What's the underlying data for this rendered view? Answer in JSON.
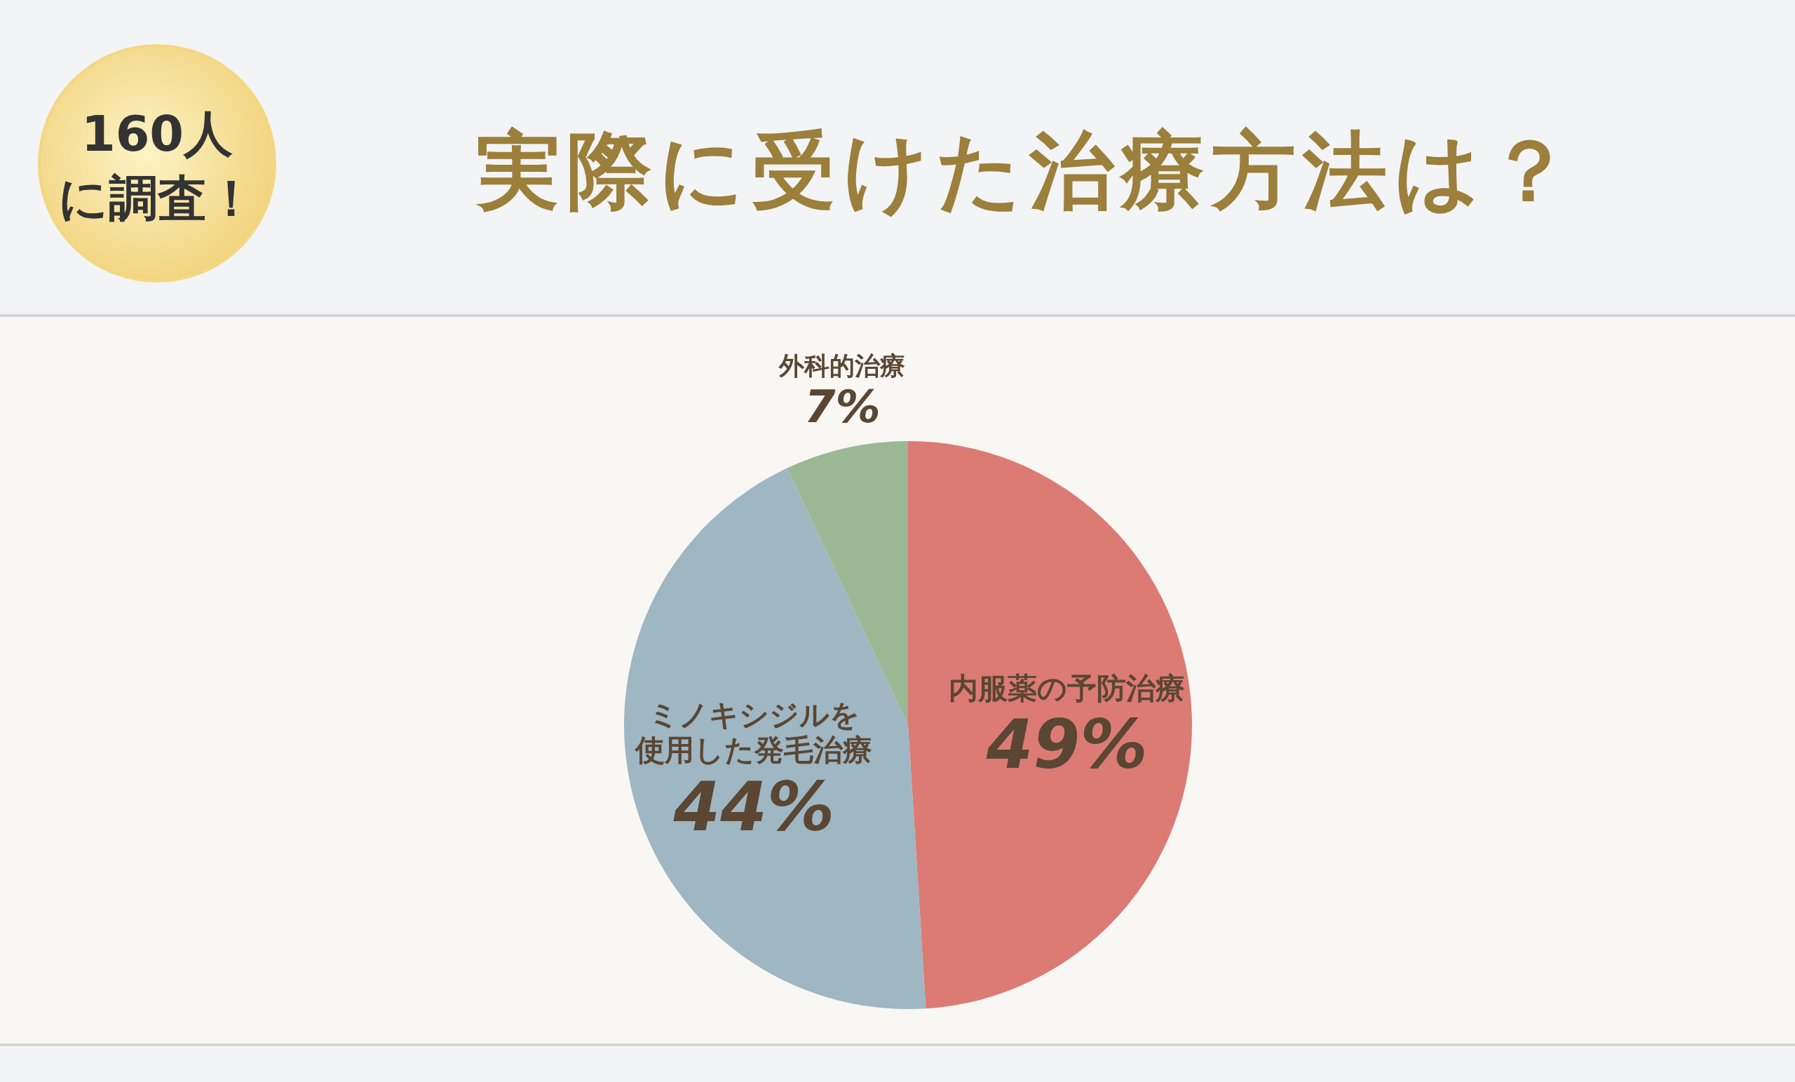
{
  "chart_data": {
    "type": "pie",
    "title": "実際に受けた治療方法は？",
    "annotations": [
      "160人に調査！"
    ],
    "categories": [
      "内服薬の予防治療",
      "ミノキシジルを使用した発毛治療",
      "外科的治療"
    ],
    "values": [
      49,
      44,
      7
    ],
    "value_labels": [
      "49%",
      "44%",
      "7%"
    ],
    "colors": [
      "#db7b74",
      "#9fb6c3",
      "#9bb894"
    ]
  }
}
